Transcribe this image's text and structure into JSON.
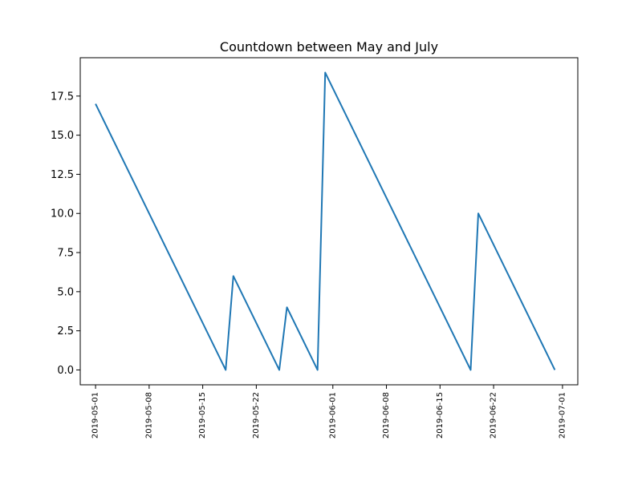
{
  "chart_data": {
    "type": "line",
    "title": "Countdown between May and July",
    "xlabel": "",
    "ylabel": "",
    "x_axis_type": "date",
    "xlim": [
      "2019-04-29",
      "2019-07-03"
    ],
    "ylim": [
      -0.95,
      19.95
    ],
    "grid": false,
    "legend": "none",
    "x_ticks": [
      "2019-05-01",
      "2019-05-08",
      "2019-05-15",
      "2019-05-22",
      "2019-06-01",
      "2019-06-08",
      "2019-06-15",
      "2019-06-22",
      "2019-07-01"
    ],
    "y_ticks": [
      0.0,
      2.5,
      5.0,
      7.5,
      10.0,
      12.5,
      15.0,
      17.5
    ],
    "y_tick_labels": [
      "0.0",
      "2.5",
      "5.0",
      "7.5",
      "10.0",
      "12.5",
      "15.0",
      "17.5"
    ],
    "series": [
      {
        "color": "#1f77b4",
        "points": [
          {
            "x": "2019-05-01",
            "y": 17
          },
          {
            "x": "2019-05-18",
            "y": 0
          },
          {
            "x": "2019-05-19",
            "y": 6
          },
          {
            "x": "2019-05-25",
            "y": 0
          },
          {
            "x": "2019-05-26",
            "y": 4
          },
          {
            "x": "2019-05-30",
            "y": 0
          },
          {
            "x": "2019-05-31",
            "y": 19
          },
          {
            "x": "2019-06-19",
            "y": 0
          },
          {
            "x": "2019-06-20",
            "y": 10
          },
          {
            "x": "2019-06-30",
            "y": 0
          }
        ]
      }
    ]
  }
}
